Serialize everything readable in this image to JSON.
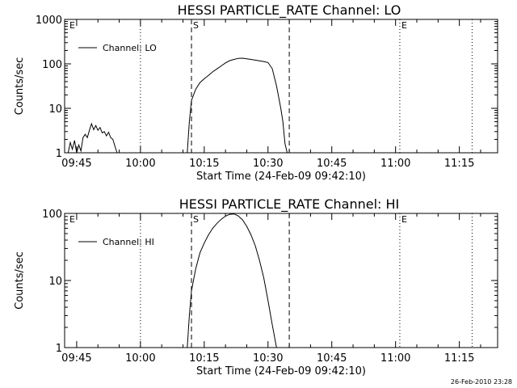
{
  "chart_data": [
    {
      "type": "line",
      "title": "HESSI PARTICLE_RATE Channel: LO",
      "xlabel": "Start Time (24-Feb-09 09:42:10)",
      "ylabel": "Counts/sec",
      "yscale": "log",
      "ylim": [
        1,
        1000
      ],
      "xlim": [
        "09:42:10",
        "11:24:00"
      ],
      "x_ticks": [
        "09:45",
        "10:00",
        "10:15",
        "10:30",
        "10:45",
        "11:00",
        "11:15"
      ],
      "y_ticks": [
        "1",
        "10",
        "100",
        "1000"
      ],
      "legend": {
        "label": "Channel: LO",
        "position": "top-left"
      },
      "markers": [
        {
          "label": "E",
          "time": "09:42:10",
          "style": "dotted"
        },
        {
          "label": "",
          "time": "10:00",
          "style": "dotted"
        },
        {
          "label": "S",
          "time": "10:12",
          "style": "dashed"
        },
        {
          "label": "",
          "time": "10:35",
          "style": "dashed"
        },
        {
          "label": "E",
          "time": "11:01",
          "style": "dotted"
        },
        {
          "label": "",
          "time": "11:18",
          "style": "dotted"
        }
      ],
      "series": [
        {
          "name": "Channel: LO",
          "segments": [
            [
              [
                "09:43:00",
                1
              ],
              [
                "09:43:30",
                1.7
              ],
              [
                "09:44:00",
                1.2
              ],
              [
                "09:44:30",
                1.9
              ],
              [
                "09:45:00",
                1
              ],
              [
                "09:45:30",
                1.5
              ],
              [
                "09:46:00",
                1.1
              ],
              [
                "09:46:30",
                2.2
              ],
              [
                "09:47:00",
                2.6
              ],
              [
                "09:47:30",
                2.2
              ],
              [
                "09:48:00",
                3.2
              ],
              [
                "09:48:30",
                4.5
              ],
              [
                "09:49:00",
                3.3
              ],
              [
                "09:49:30",
                4.1
              ],
              [
                "09:50:00",
                3.2
              ],
              [
                "09:50:30",
                3.7
              ],
              [
                "09:51:00",
                2.8
              ],
              [
                "09:51:30",
                3.0
              ],
              [
                "09:52:00",
                2.4
              ],
              [
                "09:52:30",
                2.9
              ],
              [
                "09:53:00",
                2.2
              ],
              [
                "09:53:30",
                2.0
              ],
              [
                "09:54:00",
                1.4
              ],
              [
                "09:54:30",
                1.0
              ]
            ],
            [
              [
                "10:11:00",
                1
              ],
              [
                "10:11:30",
                5
              ],
              [
                "10:12:00",
                15
              ],
              [
                "10:13:00",
                27
              ],
              [
                "10:14:00",
                38
              ],
              [
                "10:15:00",
                46
              ],
              [
                "10:16:00",
                55
              ],
              [
                "10:17:00",
                66
              ],
              [
                "10:18:00",
                77
              ],
              [
                "10:19:00",
                90
              ],
              [
                "10:20:00",
                105
              ],
              [
                "10:21:00",
                118
              ],
              [
                "10:22:00",
                126
              ],
              [
                "10:23:00",
                133
              ],
              [
                "10:24:00",
                134
              ],
              [
                "10:25:00",
                130
              ],
              [
                "10:26:00",
                126
              ],
              [
                "10:27:00",
                121
              ],
              [
                "10:28:00",
                117
              ],
              [
                "10:29:00",
                113
              ],
              [
                "10:30:00",
                107
              ],
              [
                "10:31:00",
                78
              ],
              [
                "10:32:00",
                32
              ],
              [
                "10:33:00",
                10
              ],
              [
                "10:33:30",
                5
              ],
              [
                "10:34:00",
                1.6
              ],
              [
                "10:34:30",
                1
              ]
            ]
          ]
        }
      ]
    },
    {
      "type": "line",
      "title": "HESSI PARTICLE_RATE Channel: HI",
      "xlabel": "Start Time (24-Feb-09 09:42:10)",
      "ylabel": "Counts/sec",
      "yscale": "log",
      "ylim": [
        1,
        100
      ],
      "xlim": [
        "09:42:10",
        "11:24:00"
      ],
      "x_ticks": [
        "09:45",
        "10:00",
        "10:15",
        "10:30",
        "10:45",
        "11:00",
        "11:15"
      ],
      "y_ticks": [
        "1",
        "10",
        "100"
      ],
      "legend": {
        "label": "Channel: HI",
        "position": "top-left"
      },
      "markers": [
        {
          "label": "E",
          "time": "09:42:10",
          "style": "dotted"
        },
        {
          "label": "",
          "time": "10:00",
          "style": "dotted"
        },
        {
          "label": "S",
          "time": "10:12",
          "style": "dashed"
        },
        {
          "label": "",
          "time": "10:35",
          "style": "dashed"
        },
        {
          "label": "E",
          "time": "11:01",
          "style": "dotted"
        },
        {
          "label": "",
          "time": "11:18",
          "style": "dotted"
        }
      ],
      "series": [
        {
          "name": "Channel: HI",
          "segments": [
            [
              [
                "10:11:00",
                1
              ],
              [
                "10:11:30",
                3
              ],
              [
                "10:12:00",
                7
              ],
              [
                "10:13:00",
                15
              ],
              [
                "10:14:00",
                26
              ],
              [
                "10:15:00",
                36
              ],
              [
                "10:16:00",
                48
              ],
              [
                "10:17:00",
                60
              ],
              [
                "10:18:00",
                71
              ],
              [
                "10:19:00",
                82
              ],
              [
                "10:20:00",
                91
              ],
              [
                "10:21:00",
                97
              ],
              [
                "10:22:00",
                98
              ],
              [
                "10:23:00",
                92
              ],
              [
                "10:24:00",
                80
              ],
              [
                "10:25:00",
                64
              ],
              [
                "10:26:00",
                48
              ],
              [
                "10:27:00",
                33
              ],
              [
                "10:28:00",
                20
              ],
              [
                "10:29:00",
                11
              ],
              [
                "10:30:00",
                5
              ],
              [
                "10:31:00",
                2.2
              ],
              [
                "10:32:00",
                1
              ]
            ]
          ]
        }
      ]
    }
  ],
  "footer": {
    "timestamp": "26-Feb-2010 23:28"
  }
}
